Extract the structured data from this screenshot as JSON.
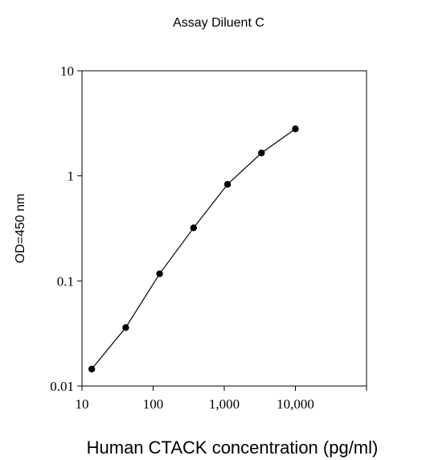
{
  "chart_data": {
    "type": "line",
    "title": "Assay Diluent C",
    "xlabel": "Human CTACK concentration (pg/ml)",
    "ylabel": "OD=450 nm",
    "x_scale": "log",
    "y_scale": "log",
    "xlim": [
      10,
      100000
    ],
    "ylim": [
      0.01,
      10
    ],
    "x_ticks": [
      {
        "value": 10,
        "label": "10"
      },
      {
        "value": 100,
        "label": "100"
      },
      {
        "value": 1000,
        "label": "1,000"
      },
      {
        "value": 10000,
        "label": "10,000"
      },
      {
        "value": 100000,
        "label": ""
      }
    ],
    "y_ticks": [
      {
        "value": 0.01,
        "label": "0.01"
      },
      {
        "value": 0.1,
        "label": "0.1"
      },
      {
        "value": 1,
        "label": "1"
      },
      {
        "value": 10,
        "label": "10"
      }
    ],
    "grid": false,
    "legend": "none",
    "series": [
      {
        "color": "#000000",
        "marker": "filled-circle",
        "x": [
          13.7,
          41.2,
          123.5,
          370.4,
          1111,
          3333,
          10000
        ],
        "y": [
          0.0145,
          0.036,
          0.117,
          0.32,
          0.83,
          1.65,
          2.8
        ]
      }
    ]
  }
}
